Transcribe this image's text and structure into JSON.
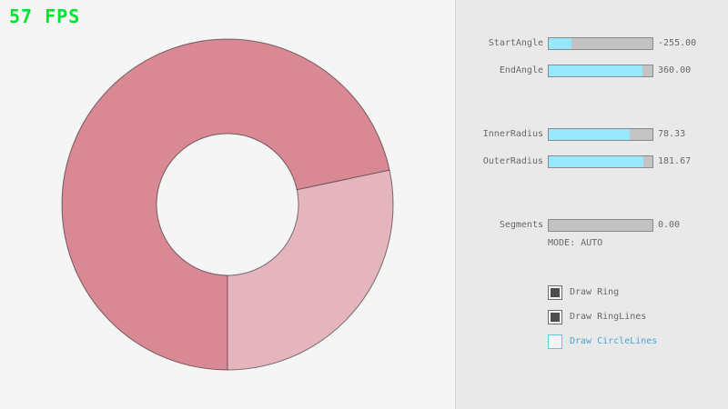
{
  "fps_label": "57 FPS",
  "colors": {
    "fps_green": "#00e430",
    "ring_dark": "#d98994",
    "ring_light": "#e4b5bc",
    "ring_outline": "rgba(0,0,0,0.5)",
    "slider_fill": "#97e8ff",
    "slider_track": "#c3c3c3",
    "slider_border": "#8a8a8a",
    "text_gray": "#686868",
    "focused_blue": "#4aa5d0",
    "canvas_bg": "#f5f5f5",
    "panel_bg": "#e9e9e9"
  },
  "ring": {
    "start_angle": -255.0,
    "end_angle": 360.0,
    "inner_radius": 78.33,
    "outer_radius": 181.67,
    "segments": 0.0,
    "mode": "AUTO"
  },
  "panel": {
    "sliders": [
      {
        "label": "StartAngle",
        "value": "-255.00",
        "fill": 21.7
      },
      {
        "label": "EndAngle",
        "value": "360.00",
        "fill": 90.0
      },
      {
        "label": "InnerRadius",
        "value": "78.33",
        "fill": 78.3
      },
      {
        "label": "OuterRadius",
        "value": "181.67",
        "fill": 90.8
      },
      {
        "label": "Segments",
        "value": "0.00",
        "fill": 0
      }
    ],
    "mode_label": "MODE: AUTO",
    "checkboxes": [
      {
        "label": "Draw Ring",
        "state": "checked"
      },
      {
        "label": "Draw RingLines",
        "state": "checked"
      },
      {
        "label": "Draw CircleLines",
        "state": "focused"
      }
    ]
  }
}
